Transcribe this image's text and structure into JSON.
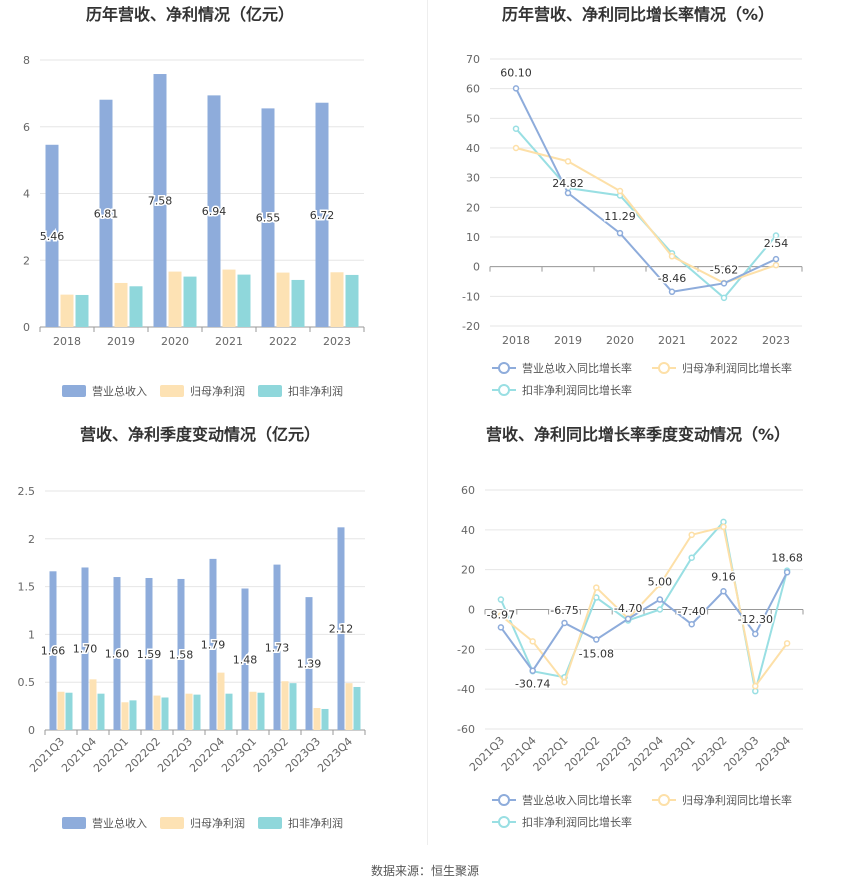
{
  "colors": {
    "revenue": "#8eacdb",
    "net_profit": "#fde2b4",
    "deducted_profit": "#8fd7db",
    "revenue_line": "#8eacdb",
    "net_profit_line": "#fde0a8",
    "deducted_line": "#99dfe3"
  },
  "source_text": "数据来源：恒生聚源",
  "chart_data": [
    {
      "type": "bar",
      "title": "历年营收、净利情况（亿元）",
      "categories": [
        "2018",
        "2019",
        "2020",
        "2021",
        "2022",
        "2023"
      ],
      "series": [
        {
          "name": "营业总收入",
          "values": [
            5.46,
            6.81,
            7.58,
            6.94,
            6.55,
            6.72
          ],
          "labels": [
            "5.46",
            "6.81",
            "7.58",
            "6.94",
            "6.55",
            "6.72"
          ]
        },
        {
          "name": "归母净利润",
          "values": [
            0.97,
            1.32,
            1.66,
            1.72,
            1.63,
            1.64
          ]
        },
        {
          "name": "扣非净利润",
          "values": [
            0.96,
            1.22,
            1.51,
            1.57,
            1.41,
            1.56
          ]
        }
      ],
      "ylim": [
        0,
        8
      ],
      "yticks": [
        "0",
        "2",
        "4",
        "6",
        "8"
      ],
      "grid": true,
      "legend": "bottom"
    },
    {
      "type": "line",
      "title": "历年营收、净利同比增长率情况（%）",
      "categories": [
        "2018",
        "2019",
        "2020",
        "2021",
        "2022",
        "2023"
      ],
      "series": [
        {
          "name": "营业总收入同比增长率",
          "values": [
            60.1,
            24.82,
            11.29,
            -8.46,
            -5.62,
            2.54
          ],
          "labels": [
            "60.10",
            "24.82",
            "11.29",
            "-8.46",
            "-5.62",
            "2.54"
          ]
        },
        {
          "name": "归母净利润同比增长率",
          "values": [
            40.0,
            35.5,
            25.5,
            3.5,
            -5.5,
            0.5
          ]
        },
        {
          "name": "扣非净利润同比增长率",
          "values": [
            46.5,
            26.5,
            24.0,
            4.5,
            -10.5,
            10.5
          ]
        }
      ],
      "ylim": [
        -20,
        70
      ],
      "yticks": [
        "-20",
        "-10",
        "0",
        "10",
        "20",
        "30",
        "40",
        "50",
        "60",
        "70"
      ],
      "grid": true,
      "legend": "bottom"
    },
    {
      "type": "bar",
      "title": "营收、净利季度变动情况（亿元）",
      "categories": [
        "2021Q3",
        "2021Q4",
        "2022Q1",
        "2022Q2",
        "2022Q3",
        "2022Q4",
        "2023Q1",
        "2023Q2",
        "2023Q3",
        "2023Q4"
      ],
      "series": [
        {
          "name": "营业总收入",
          "values": [
            1.66,
            1.7,
            1.6,
            1.59,
            1.58,
            1.79,
            1.48,
            1.73,
            1.39,
            2.12
          ],
          "labels": [
            "1.66",
            "1.70",
            "1.60",
            "1.59",
            "1.58",
            "1.79",
            "1.48",
            "1.73",
            "1.39",
            "2.12"
          ]
        },
        {
          "name": "归母净利润",
          "values": [
            0.4,
            0.53,
            0.29,
            0.36,
            0.38,
            0.6,
            0.4,
            0.51,
            0.23,
            0.49
          ]
        },
        {
          "name": "扣非净利润",
          "values": [
            0.39,
            0.38,
            0.31,
            0.34,
            0.37,
            0.38,
            0.39,
            0.49,
            0.22,
            0.45
          ]
        }
      ],
      "ylim": [
        0,
        2.5
      ],
      "yticks": [
        "0",
        "0.5",
        "1",
        "1.5",
        "2",
        "2.5"
      ],
      "grid": true,
      "legend": "bottom"
    },
    {
      "type": "line",
      "title": "营收、净利同比增长率季度变动情况（%）",
      "categories": [
        "2021Q3",
        "2021Q4",
        "2022Q1",
        "2022Q2",
        "2022Q3",
        "2022Q4",
        "2023Q1",
        "2023Q2",
        "2023Q3",
        "2023Q4"
      ],
      "series": [
        {
          "name": "营业总收入同比增长率",
          "values": [
            -8.97,
            -30.74,
            -6.75,
            -15.08,
            -4.7,
            5.0,
            -7.4,
            9.16,
            -12.3,
            18.68
          ],
          "labels": [
            "-8.97",
            "-30.74",
            "-6.75",
            "-15.08",
            "-4.70",
            "5.00",
            "-7.40",
            "9.16",
            "-12.30",
            "18.68"
          ]
        },
        {
          "name": "归母净利润同比增长率",
          "values": [
            -3.0,
            -16.0,
            -36.5,
            11.0,
            -4.5,
            12.5,
            37.5,
            41.5,
            -38.5,
            -17.0
          ]
        },
        {
          "name": "扣非净利润同比增长率",
          "values": [
            5.0,
            -31.0,
            -34.0,
            6.0,
            -5.5,
            0.0,
            26.0,
            44.0,
            -41.0,
            19.5
          ]
        }
      ],
      "ylim": [
        -60,
        60
      ],
      "yticks": [
        "-60",
        "-40",
        "-20",
        "0",
        "20",
        "40",
        "60"
      ],
      "grid": true,
      "legend": "bottom"
    }
  ]
}
